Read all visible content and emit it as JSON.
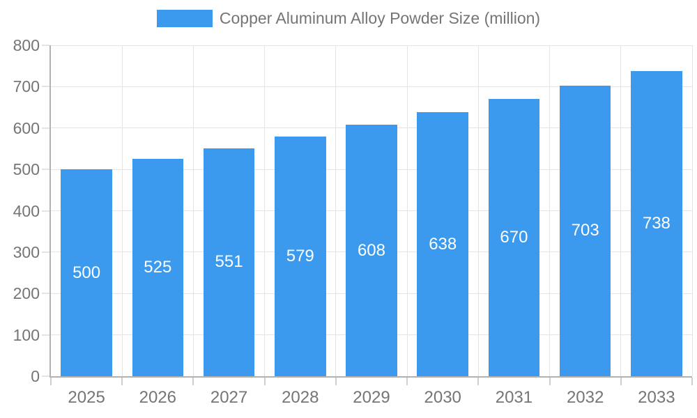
{
  "legend": {
    "label": "Copper Aluminum Alloy Powder Size (million)",
    "swatch_color": "#3b99ee"
  },
  "chart_data": {
    "type": "bar",
    "title": "Copper Aluminum Alloy Powder Size (million)",
    "categories": [
      "2025",
      "2026",
      "2027",
      "2028",
      "2029",
      "2030",
      "2031",
      "2032",
      "2033"
    ],
    "values": [
      500,
      525,
      551,
      579,
      608,
      638,
      670,
      703,
      738
    ],
    "xlabel": "",
    "ylabel": "",
    "ylim": [
      0,
      800
    ],
    "yticks": [
      0,
      100,
      200,
      300,
      400,
      500,
      600,
      700,
      800
    ],
    "grid": true,
    "legend_position": "top-center",
    "value_label_position": "inside-middle",
    "bar_color": "#3b99ee",
    "value_label_color": "#ffffff"
  },
  "style": {
    "background": "#ffffff",
    "axis_line_color": "#b1b1b1",
    "gridline_color": "#e4e4e4",
    "tick_mark_color": "#cfcfcf",
    "tick_label_color": "#757575"
  }
}
